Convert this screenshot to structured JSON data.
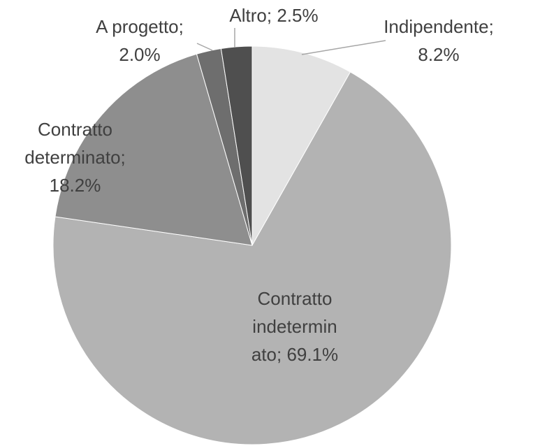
{
  "chart_data": {
    "type": "pie",
    "categories": [
      "Indipendente;",
      "Contratto indeterminato;",
      "Contratto determinato;",
      "A progetto;",
      "Altro;"
    ],
    "values": [
      8.2,
      69.1,
      18.2,
      2.0,
      2.5
    ],
    "value_labels": [
      "8.2%",
      "69.1%",
      "18.2%",
      "2.0%",
      "2.5%"
    ],
    "colors": [
      "#e3e3e3",
      "#b3b3b3",
      "#8e8e8e",
      "#6e6e6e",
      "#4f4f4f"
    ]
  }
}
